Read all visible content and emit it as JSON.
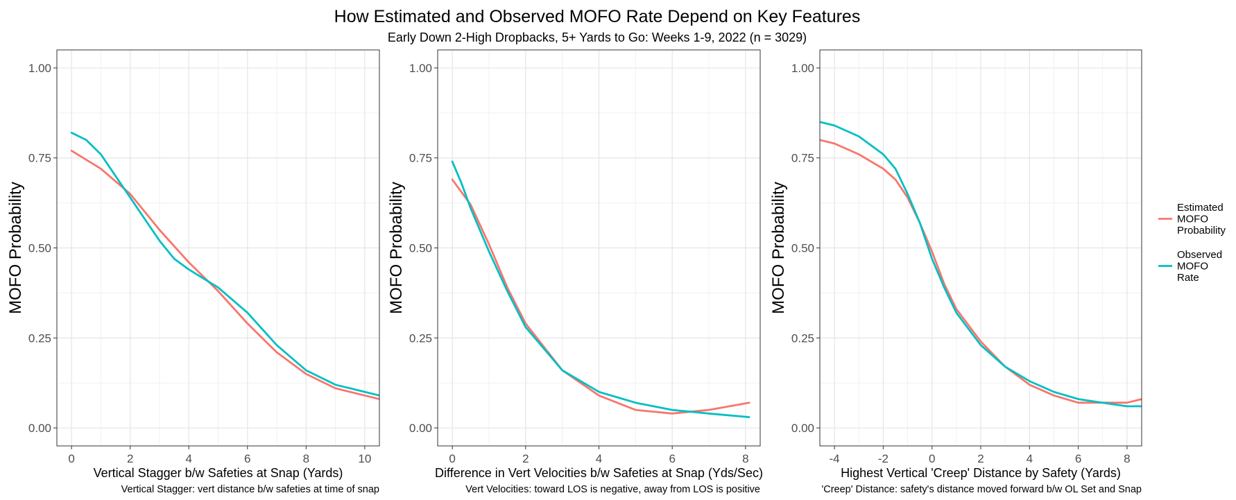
{
  "title": "How Estimated and Observed MOFO Rate Depend on Key Features",
  "subtitle": "Early Down 2-High Dropbacks, 5+ Yards to Go: Weeks 1-9, 2022 (n = 3029)",
  "legend": {
    "placement": "right",
    "items": [
      {
        "lines": [
          "Estimated",
          "MOFO",
          "Probability"
        ],
        "color": "#F8766D"
      },
      {
        "lines": [
          "Observed",
          "MOFO",
          "Rate"
        ],
        "color": "#00BFC4"
      }
    ]
  },
  "chart_data": [
    {
      "type": "line",
      "xlabel": "Vertical Stagger b/w Safeties at Snap (Yards)",
      "caption": "Vertical Stagger: vert distance b/w safeties at time of snap",
      "ylabel": "MOFO Probability",
      "xlim": [
        -0.5,
        10.5
      ],
      "ylim": [
        -0.05,
        1.05
      ],
      "xticks": [
        0,
        2,
        4,
        6,
        8,
        10
      ],
      "xtick_labels": [
        "0",
        "2",
        "4",
        "6",
        "8",
        "10"
      ],
      "yticks": [
        0,
        0.25,
        0.5,
        0.75,
        1.0
      ],
      "ytick_labels": [
        "0.00",
        "0.25",
        "0.50",
        "0.75",
        "1.00"
      ],
      "grid": true,
      "series": [
        {
          "name": "Estimated MOFO Probability",
          "color": "#F8766D",
          "x": [
            0,
            1,
            2,
            3,
            4,
            5,
            6,
            7,
            8,
            9,
            10,
            10.5
          ],
          "y": [
            0.77,
            0.72,
            0.65,
            0.55,
            0.46,
            0.38,
            0.29,
            0.21,
            0.15,
            0.11,
            0.09,
            0.08
          ]
        },
        {
          "name": "Observed MOFO Rate",
          "color": "#00BFC4",
          "x": [
            0,
            0.5,
            1,
            1.5,
            2,
            2.5,
            3,
            3.5,
            4,
            5,
            6,
            7,
            8,
            9,
            10,
            10.5
          ],
          "y": [
            0.82,
            0.8,
            0.76,
            0.7,
            0.64,
            0.58,
            0.52,
            0.47,
            0.44,
            0.39,
            0.32,
            0.23,
            0.16,
            0.12,
            0.1,
            0.09
          ]
        }
      ]
    },
    {
      "type": "line",
      "xlabel": "Difference in Vert Velocities b/w Safeties at Snap (Yds/Sec)",
      "caption": "Vert Velocities: toward LOS is negative, away from LOS is positive",
      "ylabel": "MOFO Probability",
      "xlim": [
        -0.4,
        8.4
      ],
      "ylim": [
        -0.05,
        1.05
      ],
      "xticks": [
        0,
        2,
        4,
        6,
        8
      ],
      "xtick_labels": [
        "0",
        "2",
        "4",
        "6",
        "8"
      ],
      "yticks": [
        0,
        0.25,
        0.5,
        0.75,
        1.0
      ],
      "ytick_labels": [
        "0.00",
        "0.25",
        "0.50",
        "0.75",
        "1.00"
      ],
      "grid": true,
      "series": [
        {
          "name": "Estimated MOFO Probability",
          "color": "#F8766D",
          "x": [
            0,
            0.5,
            1,
            1.5,
            2,
            3,
            4,
            5,
            6,
            7,
            8.1
          ],
          "y": [
            0.69,
            0.62,
            0.51,
            0.39,
            0.29,
            0.16,
            0.09,
            0.05,
            0.04,
            0.05,
            0.07
          ]
        },
        {
          "name": "Observed MOFO Rate",
          "color": "#00BFC4",
          "x": [
            0,
            0.25,
            0.5,
            1,
            1.5,
            2,
            3,
            4,
            5,
            6,
            7,
            8.1
          ],
          "y": [
            0.74,
            0.68,
            0.61,
            0.49,
            0.38,
            0.28,
            0.16,
            0.1,
            0.07,
            0.05,
            0.04,
            0.03
          ]
        }
      ]
    },
    {
      "type": "line",
      "xlabel": "Highest Vertical 'Creep' Distance by Safety (Yards)",
      "caption": "'Creep' Distance: safety's distance moved forward b/w OL Set and Snap",
      "ylabel": "MOFO Probability",
      "xlim": [
        -4.6,
        8.6
      ],
      "ylim": [
        -0.05,
        1.05
      ],
      "xticks": [
        -4,
        -2,
        0,
        2,
        4,
        6,
        8
      ],
      "xtick_labels": [
        "-4",
        "-2",
        "0",
        "2",
        "4",
        "6",
        "8"
      ],
      "yticks": [
        0,
        0.25,
        0.5,
        0.75,
        1.0
      ],
      "ytick_labels": [
        "0.00",
        "0.25",
        "0.50",
        "0.75",
        "1.00"
      ],
      "grid": true,
      "series": [
        {
          "name": "Estimated MOFO Probability",
          "color": "#F8766D",
          "x": [
            -4.6,
            -4,
            -3,
            -2,
            -1.5,
            -1,
            -0.5,
            0,
            0.5,
            1,
            2,
            3,
            4,
            5,
            6,
            7,
            8,
            8.6
          ],
          "y": [
            0.8,
            0.79,
            0.76,
            0.72,
            0.69,
            0.64,
            0.57,
            0.49,
            0.4,
            0.33,
            0.24,
            0.17,
            0.12,
            0.09,
            0.07,
            0.07,
            0.07,
            0.08
          ]
        },
        {
          "name": "Observed MOFO Rate",
          "color": "#00BFC4",
          "x": [
            -4.6,
            -4,
            -3,
            -2,
            -1.5,
            -1,
            -0.5,
            0,
            0.5,
            1,
            2,
            3,
            4,
            5,
            6,
            7,
            8,
            8.6
          ],
          "y": [
            0.85,
            0.84,
            0.81,
            0.76,
            0.72,
            0.65,
            0.57,
            0.47,
            0.39,
            0.32,
            0.23,
            0.17,
            0.13,
            0.1,
            0.08,
            0.07,
            0.06,
            0.06
          ]
        }
      ]
    }
  ]
}
